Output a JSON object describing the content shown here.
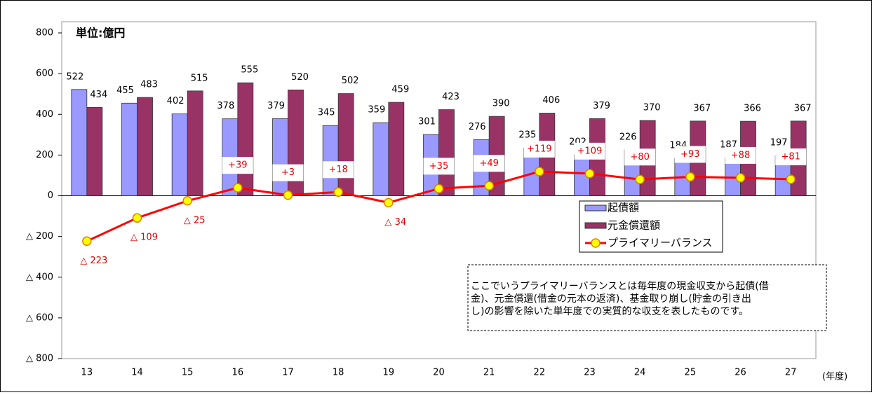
{
  "chart_data": {
    "type": "bar-line",
    "title": "単位:億円",
    "x_unit": "(年度)",
    "categories": [
      "13",
      "14",
      "15",
      "16",
      "17",
      "18",
      "19",
      "20",
      "21",
      "22",
      "23",
      "24",
      "25",
      "26",
      "27"
    ],
    "series": [
      {
        "name": "起債額",
        "type": "bar",
        "color": "#9999ff",
        "values": [
          522,
          455,
          402,
          378,
          379,
          345,
          359,
          301,
          276,
          235,
          202,
          226,
          184,
          187,
          197
        ]
      },
      {
        "name": "元金償還額",
        "type": "bar",
        "color": "#993366",
        "values": [
          434,
          483,
          515,
          555,
          520,
          502,
          459,
          423,
          390,
          406,
          379,
          370,
          367,
          366,
          367
        ]
      },
      {
        "name": "プライマリーバランス",
        "type": "line",
        "color": "#ff0000",
        "marker_color": "#ffff00",
        "values": [
          -223,
          -109,
          -25,
          39,
          3,
          18,
          -34,
          35,
          49,
          119,
          109,
          80,
          93,
          88,
          81
        ],
        "value_labels": [
          "△ 223",
          "△ 109",
          "△ 25",
          "+39",
          "+3",
          "+18",
          "△ 34",
          "+35",
          "+49",
          "+119",
          "+109",
          "+80",
          "+93",
          "+88",
          "+81"
        ]
      }
    ],
    "ylim": [
      -800,
      800
    ],
    "yticks": [
      {
        "value": -800,
        "label": "△ 800"
      },
      {
        "value": -600,
        "label": "△ 600"
      },
      {
        "value": -400,
        "label": "△ 400"
      },
      {
        "value": -200,
        "label": "△ 200"
      },
      0,
      200,
      400,
      600,
      800
    ],
    "note": [
      "ここでいうプライマリーバランスとは毎年度の現金収支から起債(借",
      "金)、元金償還(借金の元本の返済)、基金取り崩し(貯金の引き出",
      "し)の影響を除いた単年度での実質的な収支を表したものです。"
    ]
  }
}
